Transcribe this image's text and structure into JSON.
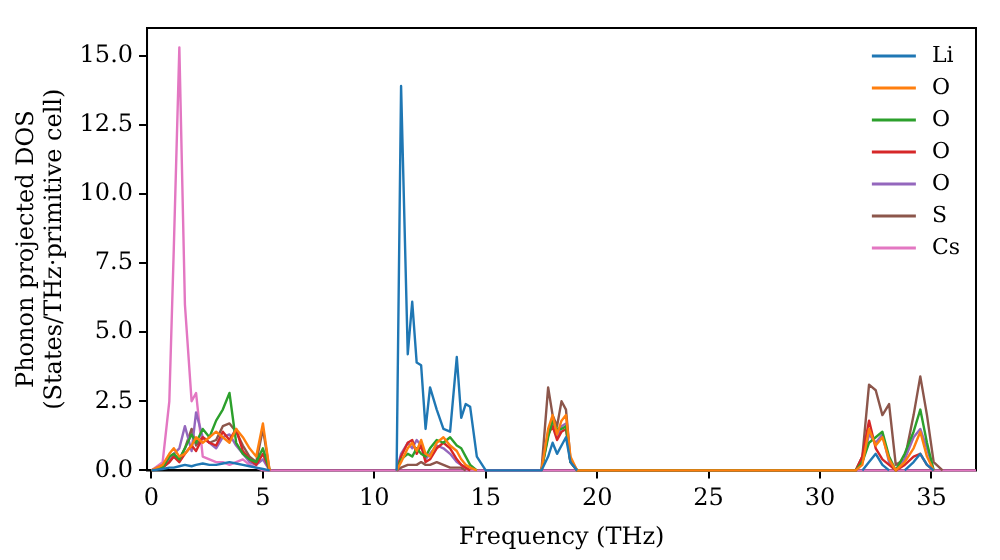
{
  "chart_data": {
    "type": "line",
    "xlabel": "Frequency (THz)",
    "ylabel": "Phonon projected DOS\n(States/THz·primitive cell)",
    "x": [
      0,
      0.5,
      0.8,
      1.0,
      1.25,
      1.5,
      1.8,
      2.0,
      2.3,
      2.6,
      2.9,
      3.2,
      3.5,
      3.8,
      4.1,
      4.4,
      4.7,
      5.0,
      5.3,
      5.6,
      11.0,
      11.2,
      11.5,
      11.7,
      11.9,
      12.1,
      12.3,
      12.5,
      12.8,
      13.1,
      13.4,
      13.7,
      13.9,
      14.1,
      14.3,
      14.6,
      15.0,
      17.5,
      17.8,
      18.0,
      18.2,
      18.4,
      18.6,
      18.8,
      19.1,
      31.6,
      31.9,
      32.2,
      32.5,
      32.8,
      33.1,
      33.4,
      33.8,
      34.2,
      34.5,
      34.8,
      35.1,
      35.5,
      37
    ],
    "series": [
      {
        "name": "Li",
        "color": "#1f77b4",
        "values": [
          0,
          0.05,
          0.1,
          0.1,
          0.15,
          0.2,
          0.15,
          0.2,
          0.25,
          0.2,
          0.2,
          0.25,
          0.3,
          0.25,
          0.2,
          0.15,
          0.1,
          0.05,
          0,
          null,
          0,
          13.9,
          4.2,
          6.1,
          3.9,
          3.8,
          1.5,
          3.0,
          2.2,
          1.5,
          1.4,
          4.1,
          1.9,
          2.4,
          2.3,
          0.5,
          0,
          0,
          0.5,
          1.0,
          0.6,
          0.9,
          1.2,
          0.3,
          0,
          null,
          0,
          0.3,
          0.6,
          0.2,
          0,
          null,
          0,
          0.3,
          0.6,
          0.2,
          0,
          null,
          null
        ]
      },
      {
        "name": "O",
        "color": "#ff7f0e",
        "values": [
          0,
          0.2,
          0.6,
          0.8,
          0.5,
          0.6,
          0.9,
          1.2,
          1.0,
          1.2,
          1.4,
          1.2,
          1.0,
          1.5,
          1.2,
          0.8,
          0.5,
          1.7,
          0,
          null,
          0,
          0.3,
          0.8,
          1.0,
          0.7,
          1.1,
          0.6,
          0.5,
          1.0,
          1.2,
          0.9,
          0.7,
          0.4,
          0.2,
          0.1,
          0,
          null,
          0,
          1.5,
          2.0,
          1.3,
          1.8,
          2.0,
          0.5,
          0,
          0,
          0.2,
          1.5,
          0.9,
          1.2,
          0.4,
          0,
          0.3,
          0.8,
          1.4,
          0.5,
          0,
          null,
          null
        ]
      },
      {
        "name": "O",
        "color": "#2ca02c",
        "values": [
          0,
          0.1,
          0.5,
          0.6,
          0.4,
          0.8,
          1.3,
          1.0,
          1.5,
          1.2,
          1.8,
          2.2,
          2.8,
          1.0,
          0.6,
          0.4,
          0.3,
          0.8,
          0,
          null,
          0,
          0.4,
          0.6,
          0.5,
          0.8,
          0.6,
          0.5,
          0.8,
          1.1,
          1.0,
          1.2,
          0.9,
          0.8,
          0.5,
          0.2,
          0,
          null,
          0,
          1.2,
          1.8,
          1.5,
          1.5,
          1.6,
          0.3,
          0,
          0,
          0.3,
          1.0,
          1.2,
          1.4,
          0.5,
          0,
          0.6,
          1.4,
          2.2,
          1.0,
          0,
          null,
          null
        ]
      },
      {
        "name": "O",
        "color": "#d62728",
        "values": [
          0,
          0.1,
          0.3,
          0.5,
          0.3,
          0.6,
          0.9,
          0.7,
          1.2,
          1.0,
          0.9,
          1.4,
          1.1,
          1.5,
          0.7,
          0.4,
          0.2,
          0.6,
          0,
          null,
          0,
          0.5,
          1.0,
          1.1,
          0.6,
          0.9,
          0.3,
          0.4,
          0.8,
          1.0,
          0.8,
          0.4,
          0.2,
          0.1,
          0,
          null,
          null,
          0,
          1.3,
          1.6,
          1.1,
          1.4,
          1.5,
          0.3,
          0,
          0,
          0.5,
          1.8,
          0.8,
          0.4,
          0.2,
          0,
          0.2,
          0.5,
          0.6,
          0.2,
          0,
          null,
          null
        ]
      },
      {
        "name": "O",
        "color": "#9467bd",
        "values": [
          0,
          0.2,
          0.4,
          0.6,
          0.8,
          1.6,
          0.7,
          2.1,
          1.2,
          1.0,
          0.8,
          1.2,
          1.3,
          0.9,
          0.6,
          0.3,
          0.2,
          0.4,
          0,
          null,
          0,
          0.6,
          1.0,
          0.8,
          1.1,
          0.9,
          0.4,
          0.6,
          0.9,
          0.8,
          0.6,
          0.3,
          0.2,
          0.1,
          0,
          null,
          null,
          0,
          1.4,
          1.8,
          1.2,
          1.6,
          1.7,
          0.3,
          0,
          0,
          0.3,
          1.3,
          1.0,
          1.3,
          0.3,
          0,
          0.4,
          1.2,
          1.5,
          0.8,
          0,
          null,
          null
        ]
      },
      {
        "name": "S",
        "color": "#8c564b",
        "values": [
          0,
          0.1,
          0.3,
          0.5,
          0.4,
          0.8,
          1.5,
          0.9,
          1.2,
          1.0,
          1.1,
          1.6,
          1.7,
          1.4,
          0.9,
          0.5,
          0.3,
          1.5,
          0,
          null,
          0,
          0.1,
          0.2,
          0.2,
          0.2,
          0.3,
          0.2,
          0.2,
          0.3,
          0.2,
          0.1,
          0.1,
          0.1,
          0,
          null,
          null,
          null,
          0,
          3.0,
          2.0,
          1.6,
          2.5,
          2.2,
          0.4,
          0,
          0,
          0.5,
          3.1,
          2.9,
          2.0,
          2.4,
          0.2,
          0.4,
          2.0,
          3.4,
          2.0,
          0.3,
          0,
          null
        ]
      },
      {
        "name": "Cs",
        "color": "#e377c2",
        "values": [
          0,
          0.3,
          2.5,
          8,
          15.3,
          6,
          2.5,
          2.8,
          0.5,
          0.4,
          0.3,
          0.3,
          0.2,
          0.3,
          0.4,
          0.2,
          0.1,
          0,
          0,
          0,
          0,
          0,
          0,
          0,
          0,
          0,
          0,
          0,
          0,
          0,
          0,
          0,
          0,
          0,
          0,
          0,
          0,
          0,
          0,
          0,
          0,
          0,
          0,
          0,
          0,
          0,
          0,
          0,
          0,
          0,
          0,
          0,
          0,
          0,
          0,
          0,
          0,
          0,
          0
        ]
      }
    ],
    "xlim": [
      -0.2,
      37
    ],
    "xticks": [
      0,
      5,
      10,
      15,
      20,
      25,
      30,
      35
    ],
    "ylim": [
      0,
      16
    ],
    "yticks": [
      {
        "value": 0,
        "label": "0.0"
      },
      {
        "value": 2.5,
        "label": "2.5"
      },
      {
        "value": 5,
        "label": "5.0"
      },
      {
        "value": 7.5,
        "label": "7.5"
      },
      {
        "value": 10,
        "label": "10.0"
      },
      {
        "value": 12.5,
        "label": "12.5"
      },
      {
        "value": 15,
        "label": "15.0"
      }
    ],
    "legend": "top right",
    "grid": false,
    "marker": "none",
    "line_style": "solid"
  }
}
